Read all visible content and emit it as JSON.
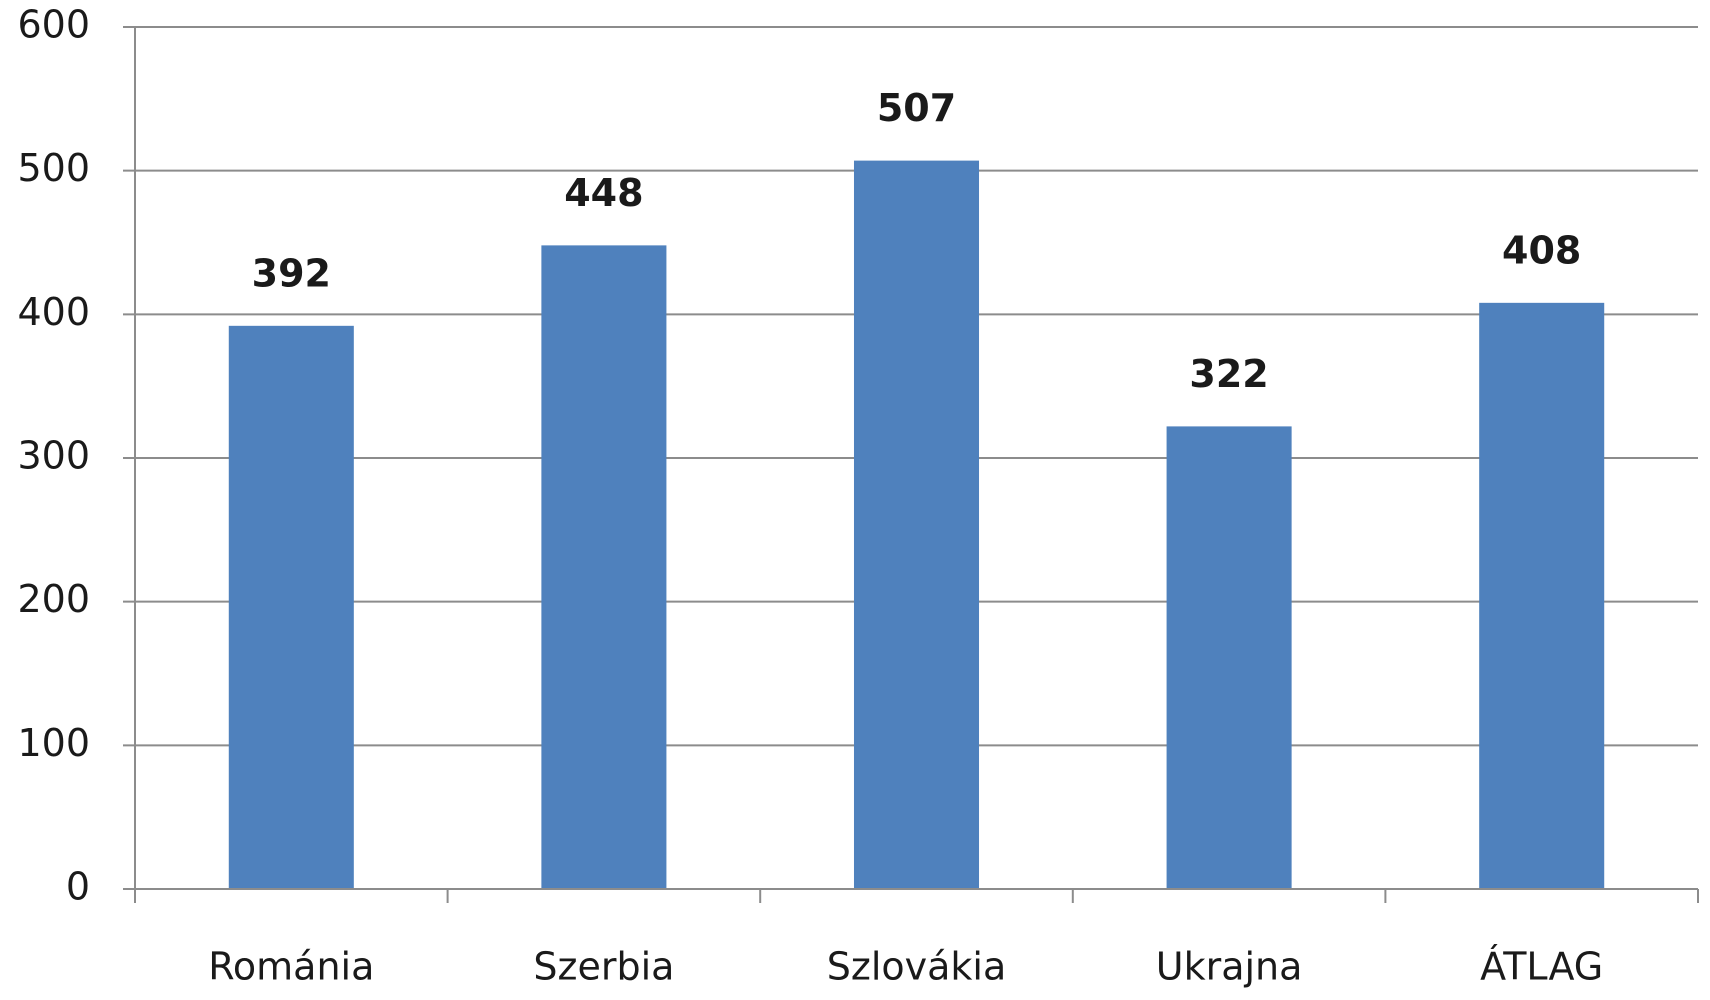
{
  "chart_data": {
    "type": "bar",
    "categories": [
      "Románia",
      "Szerbia",
      "Szlovákia",
      "Ukrajna",
      "ÁTLAG"
    ],
    "values": [
      392,
      448,
      507,
      322,
      408
    ],
    "color": "#4f81bd",
    "ylim": [
      0,
      600
    ],
    "yticks": [
      0,
      100,
      200,
      300,
      400,
      500,
      600
    ],
    "grid": true
  }
}
